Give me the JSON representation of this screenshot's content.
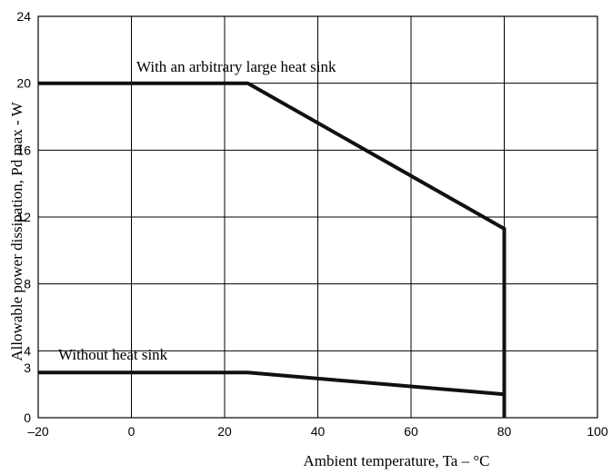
{
  "chart_data": {
    "type": "line",
    "xlabel": "Ambient temperature, Ta – °C",
    "ylabel": "Allowable power dissipation, Pd max - W",
    "xlim": [
      -20,
      100
    ],
    "ylim": [
      0,
      24
    ],
    "xticks": [
      -20,
      0,
      20,
      40,
      60,
      80,
      100
    ],
    "xtick_labels": [
      "–20",
      "0",
      "20",
      "40",
      "60",
      "80",
      "100"
    ],
    "yticks": [
      0,
      3,
      4,
      8,
      12,
      16,
      20,
      24
    ],
    "ytick_labels": [
      "0",
      "3",
      "4",
      "8",
      "12",
      "16",
      "20",
      "24"
    ],
    "xgrid": [
      -20,
      0,
      20,
      40,
      60,
      80,
      100
    ],
    "ygrid": [
      0,
      4,
      8,
      12,
      16,
      20,
      24
    ],
    "grid": true,
    "series": [
      {
        "name": "With an arbitrary large heat sink",
        "x": [
          -20,
          25,
          80,
          80
        ],
        "y": [
          20,
          20,
          11.3,
          0
        ]
      },
      {
        "name": "Without heat sink",
        "x": [
          -20,
          25,
          80
        ],
        "y": [
          2.7,
          2.7,
          1.4
        ]
      }
    ]
  }
}
